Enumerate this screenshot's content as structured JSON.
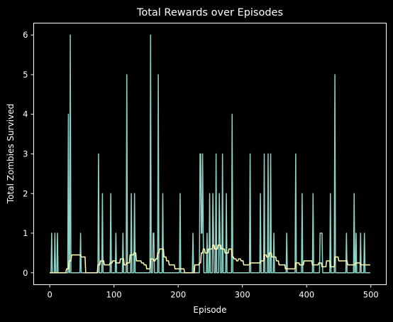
{
  "chart_data": {
    "type": "line",
    "title": "Total Rewards over Episodes",
    "xlabel": "Episode",
    "ylabel": "Total Zombies Survived",
    "xlim": [
      -25,
      524
    ],
    "ylim": [
      -0.3,
      6.3
    ],
    "xticks": [
      0,
      100,
      200,
      300,
      400,
      500
    ],
    "yticks": [
      0,
      1,
      2,
      3,
      4,
      5,
      6
    ],
    "grid": false,
    "legend": "none",
    "background": "#000000",
    "series": [
      {
        "color": "#8dd3c7",
        "x": [
          0,
          2,
          3,
          4,
          7,
          8,
          9,
          11,
          12,
          13,
          28,
          29,
          30,
          31,
          32,
          33,
          47,
          48,
          49,
          75,
          76,
          77,
          81,
          82,
          83,
          94,
          95,
          96,
          102,
          103,
          104,
          113,
          114,
          115,
          119,
          120,
          121,
          126,
          127,
          128,
          131,
          132,
          133,
          156,
          157,
          158,
          160,
          161,
          162,
          163,
          164,
          168,
          169,
          170,
          175,
          176,
          177,
          202,
          203,
          204,
          222,
          223,
          224,
          233,
          234,
          235,
          236,
          237,
          238,
          239,
          240,
          241,
          244,
          245,
          246,
          248,
          249,
          250,
          253,
          254,
          255,
          256,
          258,
          259,
          260,
          263,
          264,
          265,
          266,
          268,
          269,
          270,
          274,
          275,
          276,
          283,
          284,
          285,
          311,
          312,
          313,
          327,
          328,
          329,
          333,
          334,
          335,
          339,
          340,
          341,
          343,
          344,
          345,
          348,
          349,
          350,
          368,
          369,
          370,
          382,
          383,
          384,
          392,
          393,
          394,
          409,
          410,
          411,
          420,
          421,
          422,
          423,
          424,
          425,
          426,
          436,
          437,
          438,
          443,
          444,
          445,
          461,
          462,
          463,
          473,
          474,
          475,
          476,
          477,
          478,
          483,
          484,
          485,
          489,
          490,
          491,
          499
        ],
        "values": [
          0,
          0,
          1,
          0,
          0,
          1,
          0,
          0,
          1,
          0,
          0,
          4,
          0,
          0,
          6,
          0,
          0,
          1,
          0,
          0,
          3,
          0,
          0,
          2,
          0,
          0,
          2,
          0,
          0,
          1,
          0,
          0,
          1,
          0,
          0,
          5,
          0,
          0,
          2,
          0,
          0,
          2,
          0,
          0,
          6,
          0,
          0,
          1,
          1,
          0,
          0,
          0,
          5,
          0,
          0,
          2,
          0,
          0,
          2,
          0,
          0,
          1,
          0,
          0,
          3,
          3,
          1,
          1,
          3,
          1,
          0,
          0,
          0,
          1,
          0,
          0,
          2,
          0,
          0,
          2,
          1,
          0,
          0,
          3,
          0,
          0,
          2,
          1,
          0,
          0,
          3,
          0,
          0,
          2,
          0,
          0,
          4,
          0,
          0,
          3,
          0,
          0,
          2,
          0,
          0,
          3,
          0,
          0,
          3,
          0,
          0,
          3,
          0,
          0,
          1,
          0,
          0,
          1,
          0,
          0,
          3,
          0,
          0,
          2,
          0,
          0,
          2,
          0,
          0,
          1,
          1,
          1,
          1,
          0,
          0,
          0,
          2,
          0,
          0,
          5,
          0,
          0,
          1,
          0,
          0,
          2,
          0,
          0,
          1,
          0,
          0,
          1,
          0,
          0,
          1,
          0,
          0
        ]
      },
      {
        "color": "#ffffb3",
        "x": [
          0,
          25,
          26,
          29,
          30,
          33,
          34,
          48,
          49,
          55,
          56,
          74,
          75,
          78,
          79,
          84,
          85,
          93,
          94,
          97,
          98,
          102,
          103,
          109,
          110,
          115,
          116,
          119,
          120,
          124,
          125,
          130,
          131,
          134,
          135,
          142,
          143,
          146,
          147,
          150,
          151,
          156,
          157,
          161,
          162,
          164,
          165,
          167,
          168,
          170,
          171,
          177,
          178,
          181,
          182,
          185,
          186,
          194,
          195,
          209,
          210,
          225,
          226,
          232,
          233,
          235,
          236,
          238,
          239,
          241,
          242,
          246,
          247,
          253,
          254,
          256,
          257,
          261,
          262,
          266,
          267,
          272,
          273,
          278,
          279,
          283,
          284,
          286,
          287,
          290,
          291,
          293,
          294,
          297,
          298,
          301,
          302,
          311,
          312,
          328,
          329,
          333,
          334,
          337,
          338,
          341,
          342,
          345,
          346,
          352,
          353,
          356,
          357,
          366,
          367,
          382,
          383,
          388,
          389,
          395,
          396,
          408,
          409,
          418,
          419,
          423,
          424,
          430,
          431,
          436,
          437,
          443,
          444,
          449,
          450,
          463,
          464,
          475,
          476,
          483,
          484,
          499
        ],
        "values": [
          0,
          0,
          0.1,
          0.1,
          0.3,
          0.3,
          0.45,
          0.45,
          0.4,
          0.4,
          0,
          0,
          0.2,
          0.2,
          0.3,
          0.3,
          0.2,
          0.2,
          0.25,
          0.25,
          0.3,
          0.3,
          0.25,
          0.25,
          0.35,
          0.35,
          0.2,
          0.2,
          0.25,
          0.25,
          0.45,
          0.45,
          0.5,
          0.5,
          0.3,
          0.3,
          0.25,
          0.25,
          0.2,
          0.2,
          0.1,
          0.1,
          0.35,
          0.35,
          0.3,
          0.3,
          0.35,
          0.35,
          0.5,
          0.5,
          0.6,
          0.6,
          0.4,
          0.4,
          0.3,
          0.3,
          0.2,
          0.2,
          0.1,
          0.1,
          0,
          0,
          0.2,
          0.2,
          0.25,
          0.25,
          0.5,
          0.5,
          0.6,
          0.6,
          0.5,
          0.5,
          0.6,
          0.6,
          0.7,
          0.7,
          0.6,
          0.6,
          0.7,
          0.7,
          0.6,
          0.6,
          0.5,
          0.5,
          0.6,
          0.6,
          0.4,
          0.4,
          0.35,
          0.35,
          0.3,
          0.3,
          0.35,
          0.35,
          0.3,
          0.3,
          0.2,
          0.2,
          0.25,
          0.25,
          0.3,
          0.3,
          0.45,
          0.45,
          0.4,
          0.4,
          0.5,
          0.5,
          0.4,
          0.4,
          0.3,
          0.3,
          0.2,
          0.2,
          0.1,
          0.1,
          0.25,
          0.25,
          0.2,
          0.2,
          0.3,
          0.3,
          0.2,
          0.2,
          0.25,
          0.25,
          0.15,
          0.15,
          0.3,
          0.3,
          0.15,
          0.15,
          0.4,
          0.4,
          0.3,
          0.3,
          0.2,
          0.2,
          0.25,
          0.25,
          0.2,
          0.2
        ]
      }
    ]
  }
}
